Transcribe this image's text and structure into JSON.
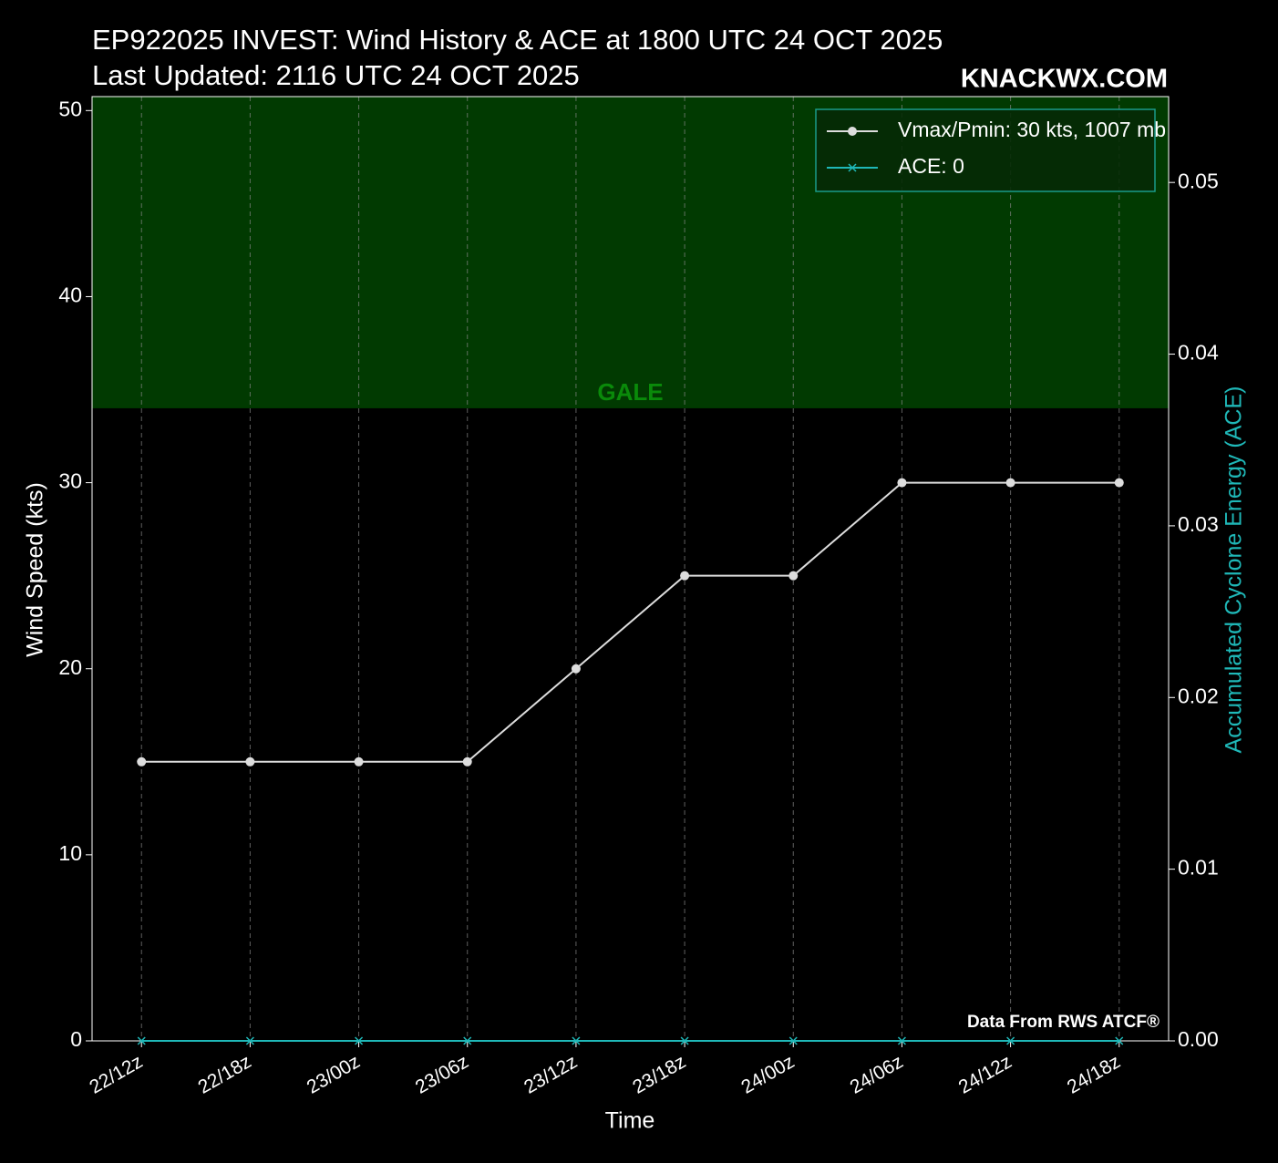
{
  "chart_data": {
    "type": "line",
    "title": "EP922025 INVEST: Wind History & ACE at 1800 UTC 24 OCT 2025",
    "subtitle": "Last Updated: 2116 UTC 24 OCT 2025",
    "watermark": "KNACKWX.COM",
    "source": "Data From RWS ATCF®",
    "xlabel": "Time",
    "ylabel": "Wind Speed (kts)",
    "y2label": "Accumulated Cyclone Energy (ACE)",
    "categories": [
      "22/12z",
      "22/18z",
      "23/00z",
      "23/06z",
      "23/12z",
      "23/18z",
      "24/00z",
      "24/06z",
      "24/12z",
      "24/18z"
    ],
    "series": [
      {
        "name": "Vmax/Pmin: 30 kts, 1007 mb",
        "color": "#dddddd",
        "marker": "o",
        "values": [
          15,
          15,
          15,
          15,
          20,
          25,
          25,
          30,
          30,
          30
        ]
      },
      {
        "name": "ACE: 0",
        "color": "#1fb8b8",
        "marker": "x",
        "axis": "y2",
        "values": [
          0,
          0,
          0,
          0,
          0,
          0,
          0,
          0,
          0,
          0
        ]
      }
    ],
    "shade": {
      "from": 34,
      "label": "GALE",
      "color": "#013a01",
      "label_color": "#0a8a0a"
    },
    "ylim": [
      0,
      50.75
    ],
    "yticks": [
      0,
      10,
      20,
      30,
      40,
      50
    ],
    "y2lim": [
      0,
      0.055
    ],
    "y2ticks": [
      {
        "value": 0,
        "label": "0.00"
      },
      {
        "value": 0.01,
        "label": "0.01"
      },
      {
        "value": 0.02,
        "label": "0.02"
      },
      {
        "value": 0.03,
        "label": "0.03"
      },
      {
        "value": 0.04,
        "label": "0.04"
      },
      {
        "value": 0.05,
        "label": "0.05"
      }
    ],
    "grid": true,
    "legend": "upper right"
  }
}
